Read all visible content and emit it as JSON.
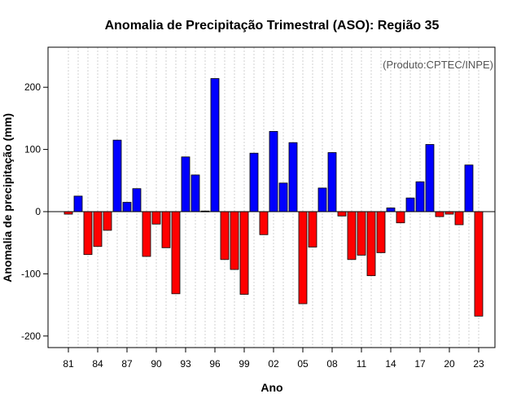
{
  "chart_data": {
    "type": "bar",
    "title": "Anomalia de Precipitação Trimestral (ASO): Região 35",
    "xlabel": "Ano",
    "ylabel": "Anomalia de precipitação (mm)",
    "annotation": "(Produto:CPTEC/INPE)",
    "ylim": [
      -220,
      265
    ],
    "yticks": [
      -200,
      -100,
      0,
      100,
      200
    ],
    "years": [
      1981,
      1982,
      1983,
      1984,
      1985,
      1986,
      1987,
      1988,
      1989,
      1990,
      1991,
      1992,
      1993,
      1994,
      1995,
      1996,
      1997,
      1998,
      1999,
      2000,
      2001,
      2002,
      2003,
      2004,
      2005,
      2006,
      2007,
      2008,
      2009,
      2010,
      2011,
      2012,
      2013,
      2014,
      2015,
      2016,
      2017,
      2018,
      2019,
      2020,
      2021,
      2022,
      2023
    ],
    "values": [
      -4,
      25,
      -69,
      -56,
      -30,
      115,
      15,
      37,
      -72,
      -20,
      -58,
      -132,
      88,
      59,
      1,
      214,
      -77,
      -93,
      -133,
      94,
      -37,
      129,
      46,
      111,
      -148,
      -57,
      38,
      95,
      -7,
      -77,
      -70,
      -103,
      -66,
      6,
      -18,
      22,
      48,
      108,
      -8,
      -4,
      -21,
      75,
      -168
    ],
    "tick_labels": [
      "81",
      "84",
      "87",
      "90",
      "93",
      "96",
      "99",
      "02",
      "05",
      "08",
      "11",
      "14",
      "17",
      "20",
      "23"
    ],
    "tick_years": [
      1981,
      1984,
      1987,
      1990,
      1993,
      1996,
      1999,
      2002,
      2005,
      2008,
      2011,
      2014,
      2017,
      2020,
      2023
    ],
    "grid": true,
    "colors": {
      "positive": "#0000ff",
      "negative": "#ff0000",
      "grid": "#d0d0d0"
    }
  }
}
